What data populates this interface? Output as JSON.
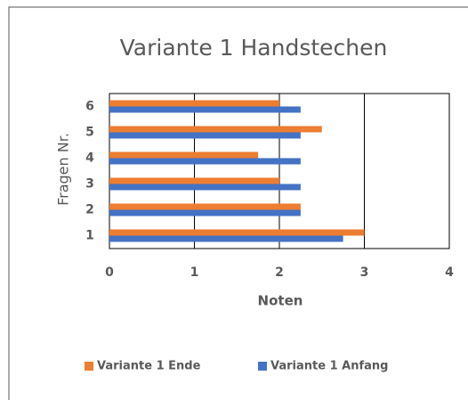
{
  "chart_data": {
    "type": "hbar",
    "title": "Variante 1 Handstechen",
    "x_label": "Noten",
    "y_label": "Fragen Nr.",
    "categories": [
      "1",
      "2",
      "3",
      "4",
      "5",
      "6"
    ],
    "series": [
      {
        "name": "Variante 1 Ende",
        "color": "#ed7d31",
        "values": [
          3,
          2.25,
          2,
          1.75,
          2.5,
          2
        ]
      },
      {
        "name": "Variante 1 Anfang",
        "color": "#4472c4",
        "values": [
          2.75,
          2.25,
          2.25,
          2.25,
          2.25,
          2.25
        ]
      }
    ],
    "xlim": [
      0,
      4
    ],
    "xticks": [
      0,
      1,
      2,
      3,
      4
    ],
    "grid": true,
    "legend": "bottom"
  }
}
